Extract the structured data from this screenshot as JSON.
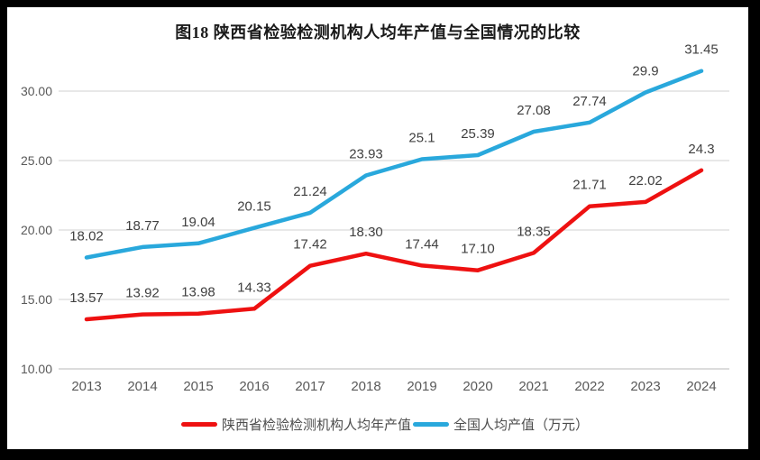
{
  "chart_data": {
    "type": "line",
    "title": "图18 陕西省检验检测机构人均年产值与全国情况的比较",
    "categories": [
      "2013",
      "2014",
      "2015",
      "2016",
      "2017",
      "2018",
      "2019",
      "2020",
      "2021",
      "2022",
      "2023",
      "2024"
    ],
    "series": [
      {
        "name": "陕西省检验检测机构人均年产值",
        "color": "#ee1111",
        "values": [
          13.57,
          13.92,
          13.98,
          14.33,
          17.42,
          18.3,
          17.44,
          17.1,
          18.35,
          21.71,
          22.02,
          24.3
        ],
        "labels": [
          "13.57",
          "13.92",
          "13.98",
          "14.33",
          "17.42",
          "18.30",
          "17.44",
          "17.10",
          "18.35",
          "21.71",
          "22.02",
          "24.3"
        ]
      },
      {
        "name": "全国人均产值（万元）",
        "color": "#29a8dc",
        "values": [
          18.02,
          18.77,
          19.04,
          20.15,
          21.24,
          23.93,
          25.1,
          25.39,
          27.08,
          27.74,
          29.9,
          31.45
        ],
        "labels": [
          "18.02",
          "18.77",
          "19.04",
          "20.15",
          "21.24",
          "23.93",
          "25.1",
          "25.39",
          "27.08",
          "27.74",
          "29.9",
          "31.45"
        ]
      }
    ],
    "y_ticks": [
      "10.00",
      "15.00",
      "20.00",
      "25.00",
      "30.00"
    ],
    "y_tick_values": [
      10,
      15,
      20,
      25,
      30
    ],
    "ylim": [
      10,
      32.5
    ],
    "xlabel": "",
    "ylabel": "",
    "grid": true,
    "legend_position": "bottom",
    "colors": {
      "grid": "#d9d9d9",
      "axis": "#c6c6c6",
      "tick_text": "#595959",
      "data_label_text": "#404040",
      "background": "#ffffff",
      "frame": "#000000"
    }
  }
}
